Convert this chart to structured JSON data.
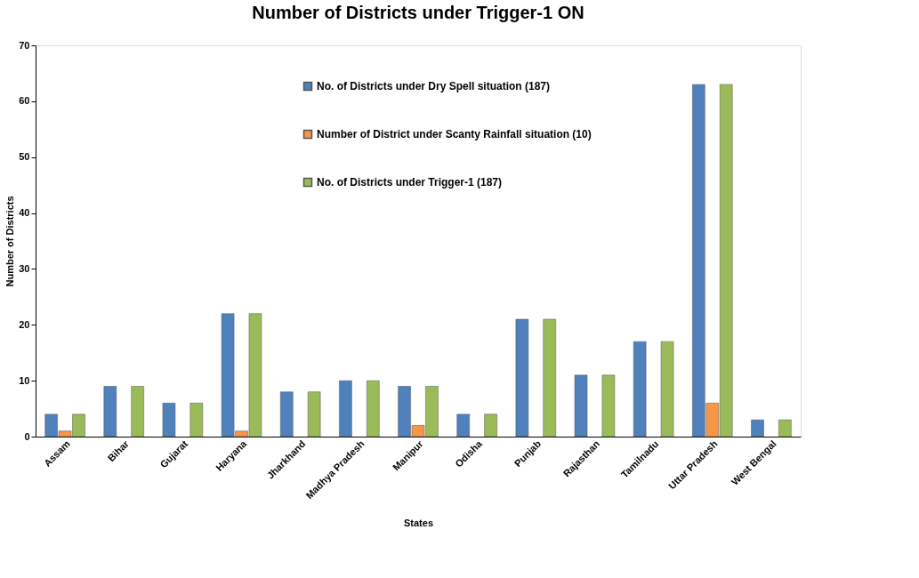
{
  "chart_data": {
    "type": "bar",
    "title": "Number of Districts under Trigger-1 ON",
    "xlabel": "States",
    "ylabel": "Number of Districts",
    "categories": [
      "Assam",
      "Bihar",
      "Gujarat",
      "Haryana",
      "Jharkhand",
      "Madhya Pradesh",
      "Manipur",
      "Odisha",
      "Punjab",
      "Rajasthan",
      "Tamilnadu",
      "Uttar Pradesh",
      "West Bengal"
    ],
    "series": [
      {
        "name": "No. of Districts under Dry Spell situation (187)",
        "color": "#4f81bd",
        "values": [
          4,
          9,
          6,
          22,
          8,
          10,
          9,
          4,
          21,
          11,
          17,
          63,
          3
        ]
      },
      {
        "name": "Number of District under Scanty Rainfall situation (10)",
        "color": "#f79646",
        "values": [
          1,
          null,
          null,
          1,
          null,
          null,
          2,
          null,
          null,
          null,
          null,
          6,
          null
        ]
      },
      {
        "name": "No. of Districts under Trigger-1 (187)",
        "color": "#9bbb59",
        "values": [
          4,
          9,
          6,
          22,
          8,
          10,
          9,
          4,
          21,
          11,
          17,
          63,
          3
        ]
      }
    ],
    "ylim": [
      0,
      70
    ],
    "yticks": [
      0,
      10,
      20,
      30,
      40,
      50,
      60,
      70
    ],
    "grid": false,
    "legend": "top"
  }
}
